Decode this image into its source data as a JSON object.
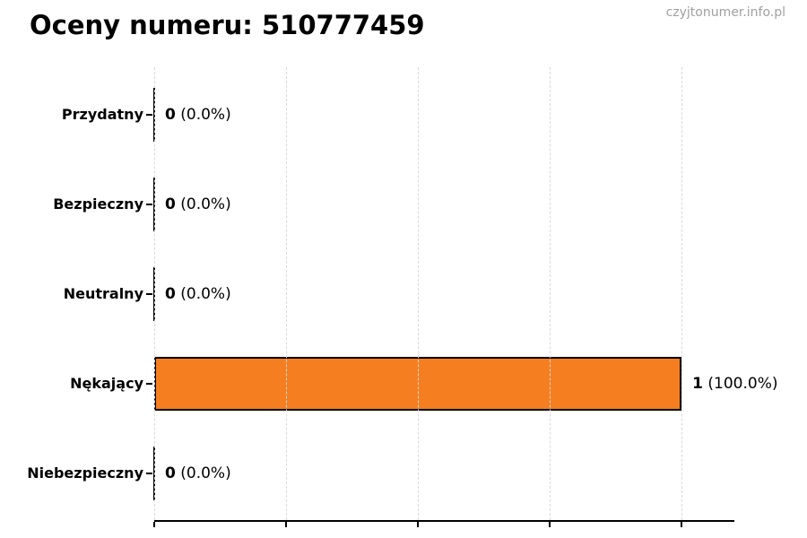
{
  "page": {
    "title": "Oceny numeru: 510777459",
    "watermark": "czyjtonumer.info.pl"
  },
  "chart_data": {
    "type": "bar",
    "orientation": "horizontal",
    "title": "Oceny numeru: 510777459",
    "categories": [
      "Przydatny",
      "Bezpieczny",
      "Neutralny",
      "Nękający",
      "Niebezpieczny"
    ],
    "values": [
      0,
      0,
      0,
      1,
      0
    ],
    "value_labels_bold": [
      "0",
      "0",
      "0",
      "1",
      "0"
    ],
    "value_labels_rest": [
      " (0.0%)",
      " (0.0%)",
      " (0.0%)",
      " (100.0%)",
      " (0.0%)"
    ],
    "xlabel": "",
    "ylabel": "",
    "xlim": [
      0,
      1.1
    ],
    "x_ticks": [
      0,
      0.25,
      0.5,
      0.75,
      1.0
    ],
    "x_tick_labels_visible": false,
    "grid": "vertical-dashed",
    "legend": "none",
    "bar_color": "#f57e20",
    "bar_edge_color": "#000000",
    "grid_color": "#d9d9d9",
    "axis_color": "#000000"
  }
}
